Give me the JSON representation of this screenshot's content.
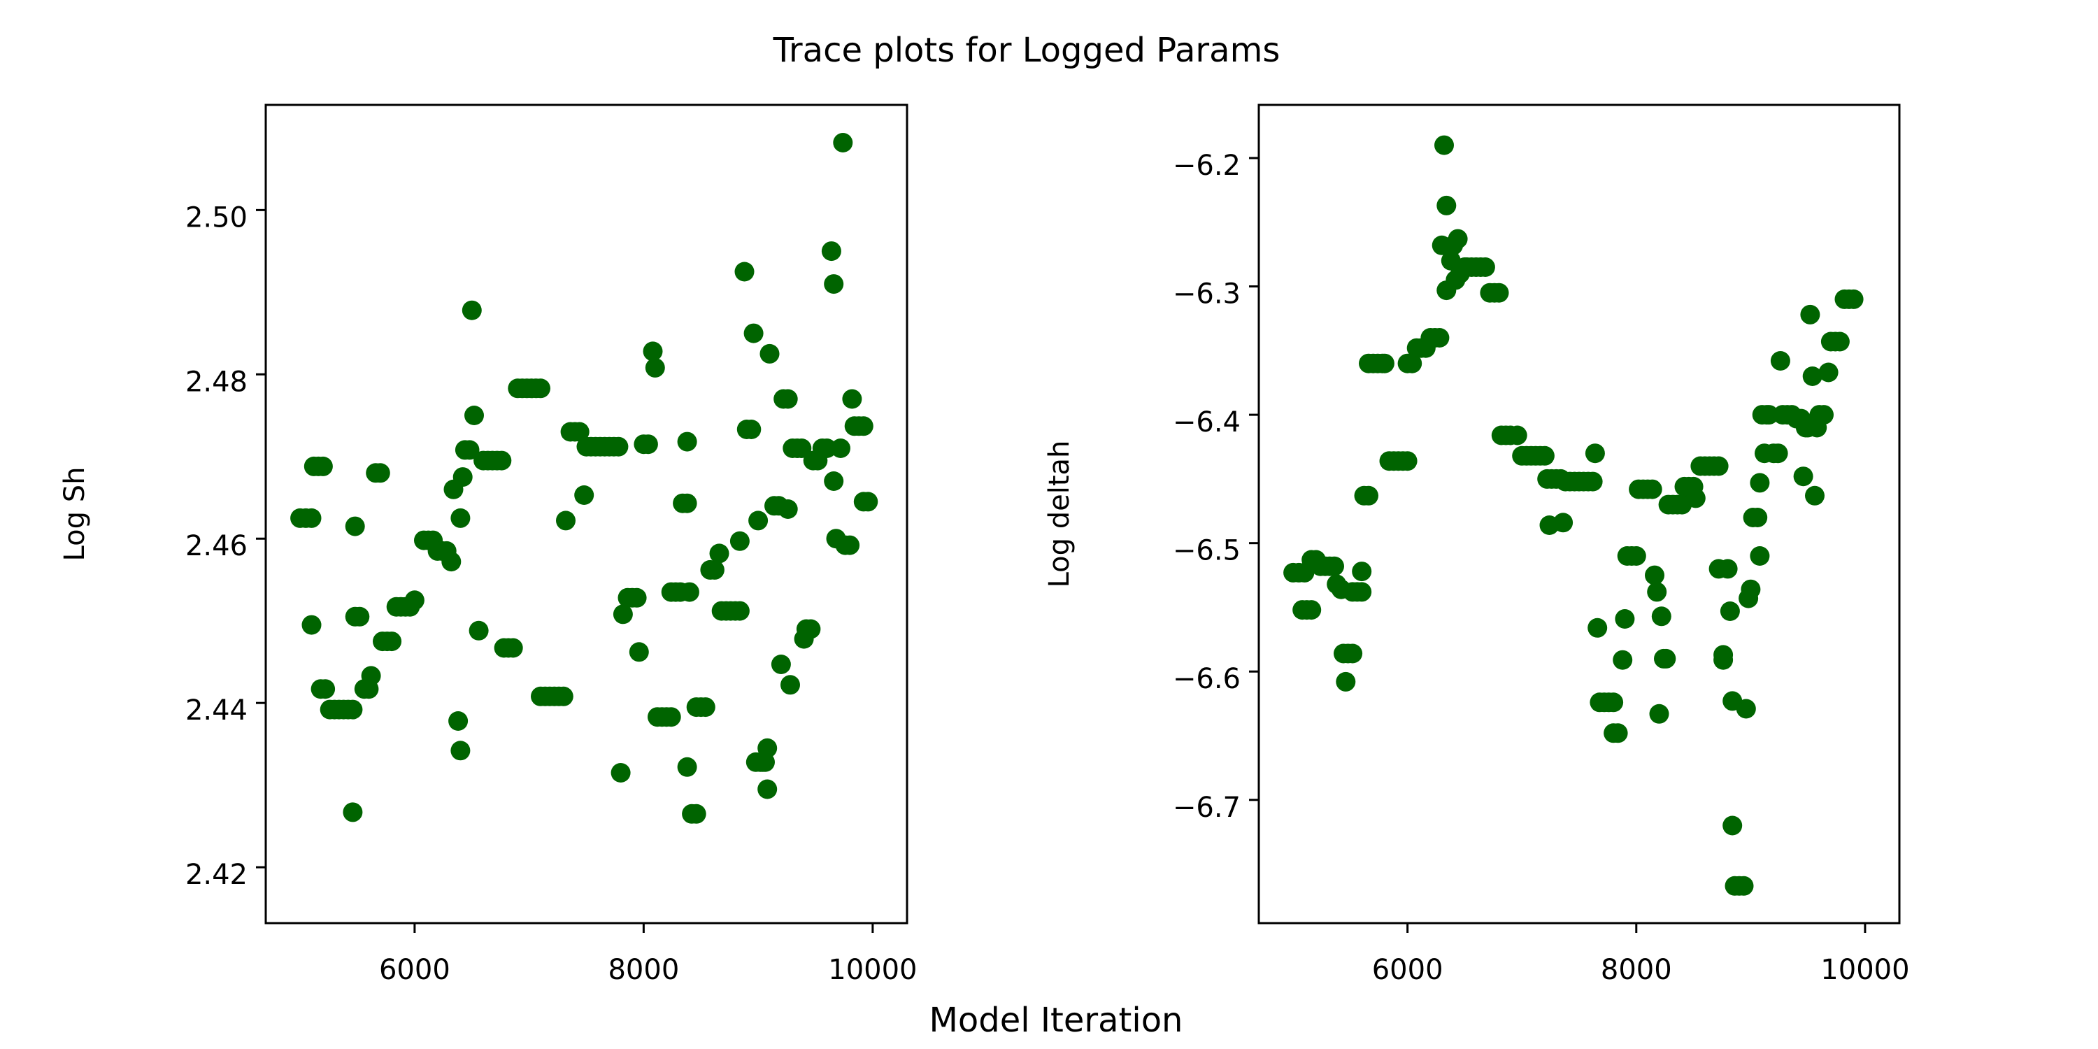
{
  "figure": {
    "title": "Trace plots for Logged Params",
    "xlabel": "Model Iteration"
  },
  "colors": {
    "points": "#006400",
    "axis": "#000000"
  },
  "chart_data": [
    {
      "type": "scatter",
      "ylabel": "Log Sh",
      "xlim": [
        4700,
        10300
      ],
      "ylim": [
        2.4132,
        2.5128
      ],
      "xticks": [
        6000,
        8000,
        10000
      ],
      "xtick_labels": [
        "6000",
        "8000",
        "10000"
      ],
      "yticks": [
        2.42,
        2.44,
        2.46,
        2.48,
        2.5
      ],
      "ytick_labels": [
        "2.42",
        "2.44",
        "2.46",
        "2.48",
        "2.50"
      ],
      "grid": false,
      "points": [
        [
          5000,
          2.4625
        ],
        [
          5050,
          2.4625
        ],
        [
          5100,
          2.4625
        ],
        [
          5100,
          2.4495
        ],
        [
          5120,
          2.4688
        ],
        [
          5160,
          2.4688
        ],
        [
          5200,
          2.4688
        ],
        [
          5180,
          2.4417
        ],
        [
          5220,
          2.4417
        ],
        [
          5260,
          2.4392
        ],
        [
          5300,
          2.4392
        ],
        [
          5340,
          2.4392
        ],
        [
          5380,
          2.4392
        ],
        [
          5420,
          2.4392
        ],
        [
          5460,
          2.4392
        ],
        [
          5460,
          2.4267
        ],
        [
          5480,
          2.4615
        ],
        [
          5480,
          2.4505
        ],
        [
          5520,
          2.4505
        ],
        [
          5560,
          2.4417
        ],
        [
          5600,
          2.4417
        ],
        [
          5620,
          2.4433
        ],
        [
          5660,
          2.468
        ],
        [
          5700,
          2.468
        ],
        [
          5720,
          2.4475
        ],
        [
          5760,
          2.4475
        ],
        [
          5800,
          2.4475
        ],
        [
          5840,
          2.4517
        ],
        [
          5880,
          2.4517
        ],
        [
          5920,
          2.4517
        ],
        [
          5960,
          2.4517
        ],
        [
          6000,
          2.4525
        ],
        [
          6080,
          2.4598
        ],
        [
          6120,
          2.4598
        ],
        [
          6160,
          2.4598
        ],
        [
          6200,
          2.4585
        ],
        [
          6240,
          2.4585
        ],
        [
          6280,
          2.4585
        ],
        [
          6320,
          2.4572
        ],
        [
          6340,
          2.466
        ],
        [
          6380,
          2.4378
        ],
        [
          6400,
          2.4625
        ],
        [
          6400,
          2.4342
        ],
        [
          6420,
          2.4675
        ],
        [
          6440,
          2.4708
        ],
        [
          6480,
          2.4708
        ],
        [
          6500,
          2.4878
        ],
        [
          6520,
          2.475
        ],
        [
          6560,
          2.4488
        ],
        [
          6600,
          2.4695
        ],
        [
          6640,
          2.4695
        ],
        [
          6680,
          2.4695
        ],
        [
          6720,
          2.4695
        ],
        [
          6760,
          2.4695
        ],
        [
          6780,
          2.4467
        ],
        [
          6820,
          2.4467
        ],
        [
          6860,
          2.4467
        ],
        [
          6900,
          2.4783
        ],
        [
          6940,
          2.4783
        ],
        [
          6980,
          2.4783
        ],
        [
          7020,
          2.4783
        ],
        [
          7060,
          2.4783
        ],
        [
          7100,
          2.4783
        ],
        [
          7100,
          2.4408
        ],
        [
          7140,
          2.4408
        ],
        [
          7180,
          2.4408
        ],
        [
          7220,
          2.4408
        ],
        [
          7260,
          2.4408
        ],
        [
          7300,
          2.4408
        ],
        [
          7320,
          2.4622
        ],
        [
          7360,
          2.473
        ],
        [
          7400,
          2.473
        ],
        [
          7440,
          2.473
        ],
        [
          7480,
          2.4653
        ],
        [
          7500,
          2.4712
        ],
        [
          7540,
          2.4712
        ],
        [
          7580,
          2.4712
        ],
        [
          7620,
          2.4712
        ],
        [
          7660,
          2.4712
        ],
        [
          7700,
          2.4712
        ],
        [
          7740,
          2.4712
        ],
        [
          7780,
          2.4712
        ],
        [
          7800,
          2.4315
        ],
        [
          7820,
          2.4508
        ],
        [
          7860,
          2.4528
        ],
        [
          7900,
          2.4528
        ],
        [
          7940,
          2.4528
        ],
        [
          7960,
          2.4462
        ],
        [
          8000,
          2.4715
        ],
        [
          8040,
          2.4715
        ],
        [
          8080,
          2.4828
        ],
        [
          8100,
          2.4808
        ],
        [
          8120,
          2.4383
        ],
        [
          8160,
          2.4383
        ],
        [
          8200,
          2.4383
        ],
        [
          8240,
          2.4383
        ],
        [
          8240,
          2.4535
        ],
        [
          8280,
          2.4535
        ],
        [
          8320,
          2.4535
        ],
        [
          8340,
          2.4643
        ],
        [
          8380,
          2.4643
        ],
        [
          8380,
          2.4718
        ],
        [
          8380,
          2.4322
        ],
        [
          8400,
          2.4535
        ],
        [
          8420,
          2.4265
        ],
        [
          8460,
          2.4265
        ],
        [
          8460,
          2.4395
        ],
        [
          8500,
          2.4395
        ],
        [
          8540,
          2.4395
        ],
        [
          8580,
          2.4562
        ],
        [
          8620,
          2.4562
        ],
        [
          8660,
          2.4582
        ],
        [
          8680,
          2.4512
        ],
        [
          8720,
          2.4512
        ],
        [
          8760,
          2.4512
        ],
        [
          8800,
          2.4512
        ],
        [
          8840,
          2.4512
        ],
        [
          8840,
          2.4597
        ],
        [
          8880,
          2.4925
        ],
        [
          8900,
          2.4733
        ],
        [
          8940,
          2.4733
        ],
        [
          8960,
          2.485
        ],
        [
          8980,
          2.4328
        ],
        [
          9000,
          2.4622
        ],
        [
          9020,
          2.4328
        ],
        [
          9040,
          2.4328
        ],
        [
          9060,
          2.4328
        ],
        [
          9080,
          2.4345
        ],
        [
          9080,
          2.4295
        ],
        [
          9100,
          2.4825
        ],
        [
          9140,
          2.464
        ],
        [
          9180,
          2.464
        ],
        [
          9200,
          2.4447
        ],
        [
          9220,
          2.477
        ],
        [
          9260,
          2.477
        ],
        [
          9260,
          2.4636
        ],
        [
          9280,
          2.4422
        ],
        [
          9300,
          2.471
        ],
        [
          9340,
          2.471
        ],
        [
          9380,
          2.471
        ],
        [
          9400,
          2.4478
        ],
        [
          9420,
          2.449
        ],
        [
          9460,
          2.449
        ],
        [
          9480,
          2.4695
        ],
        [
          9520,
          2.4695
        ],
        [
          9560,
          2.471
        ],
        [
          9600,
          2.471
        ],
        [
          9640,
          2.495
        ],
        [
          9660,
          2.491
        ],
        [
          9660,
          2.467
        ],
        [
          9680,
          2.46
        ],
        [
          9720,
          2.471
        ],
        [
          9740,
          2.5082
        ],
        [
          9760,
          2.4592
        ],
        [
          9800,
          2.4592
        ],
        [
          9820,
          2.477
        ],
        [
          9840,
          2.4737
        ],
        [
          9880,
          2.4737
        ],
        [
          9920,
          2.4737
        ],
        [
          9920,
          2.4645
        ],
        [
          9960,
          2.4645
        ]
      ]
    },
    {
      "type": "scatter",
      "ylabel": "Log deltah",
      "xlim": [
        4700,
        10300
      ],
      "ylim": [
        -6.796,
        -6.1586
      ],
      "xticks": [
        6000,
        8000,
        10000
      ],
      "xtick_labels": [
        "6000",
        "8000",
        "10000"
      ],
      "yticks": [
        -6.7,
        -6.6,
        -6.5,
        -6.4,
        -6.3,
        -6.2
      ],
      "ytick_labels": [
        "−6.7",
        "−6.6",
        "−6.5",
        "−6.4",
        "−6.3",
        "−6.2"
      ],
      "grid": false,
      "points": [
        [
          5000,
          -6.523
        ],
        [
          5050,
          -6.523
        ],
        [
          5100,
          -6.523
        ],
        [
          5080,
          -6.552
        ],
        [
          5120,
          -6.552
        ],
        [
          5160,
          -6.552
        ],
        [
          5160,
          -6.513
        ],
        [
          5200,
          -6.513
        ],
        [
          5240,
          -6.518
        ],
        [
          5280,
          -6.518
        ],
        [
          5320,
          -6.518
        ],
        [
          5360,
          -6.518
        ],
        [
          5380,
          -6.532
        ],
        [
          5420,
          -6.536
        ],
        [
          5440,
          -6.586
        ],
        [
          5460,
          -6.608
        ],
        [
          5480,
          -6.586
        ],
        [
          5520,
          -6.586
        ],
        [
          5520,
          -6.538
        ],
        [
          5560,
          -6.538
        ],
        [
          5600,
          -6.538
        ],
        [
          5600,
          -6.522
        ],
        [
          5620,
          -6.463
        ],
        [
          5660,
          -6.463
        ],
        [
          5660,
          -6.36
        ],
        [
          5700,
          -6.36
        ],
        [
          5740,
          -6.36
        ],
        [
          5780,
          -6.36
        ],
        [
          5800,
          -6.36
        ],
        [
          5840,
          -6.436
        ],
        [
          5880,
          -6.436
        ],
        [
          5920,
          -6.436
        ],
        [
          5960,
          -6.436
        ],
        [
          6000,
          -6.436
        ],
        [
          6000,
          -6.36
        ],
        [
          6040,
          -6.36
        ],
        [
          6080,
          -6.348
        ],
        [
          6120,
          -6.348
        ],
        [
          6160,
          -6.348
        ],
        [
          6200,
          -6.34
        ],
        [
          6240,
          -6.34
        ],
        [
          6280,
          -6.34
        ],
        [
          6300,
          -6.268
        ],
        [
          6320,
          -6.19
        ],
        [
          6340,
          -6.237
        ],
        [
          6340,
          -6.303
        ],
        [
          6380,
          -6.28
        ],
        [
          6400,
          -6.268
        ],
        [
          6420,
          -6.295
        ],
        [
          6440,
          -6.263
        ],
        [
          6460,
          -6.29
        ],
        [
          6500,
          -6.285
        ],
        [
          6520,
          -6.285
        ],
        [
          6560,
          -6.285
        ],
        [
          6600,
          -6.285
        ],
        [
          6640,
          -6.285
        ],
        [
          6680,
          -6.285
        ],
        [
          6720,
          -6.305
        ],
        [
          6760,
          -6.305
        ],
        [
          6800,
          -6.305
        ],
        [
          6820,
          -6.416
        ],
        [
          6860,
          -6.416
        ],
        [
          6900,
          -6.416
        ],
        [
          6960,
          -6.416
        ],
        [
          7000,
          -6.432
        ],
        [
          7040,
          -6.432
        ],
        [
          7080,
          -6.432
        ],
        [
          7120,
          -6.432
        ],
        [
          7160,
          -6.432
        ],
        [
          7200,
          -6.432
        ],
        [
          7220,
          -6.45
        ],
        [
          7240,
          -6.486
        ],
        [
          7260,
          -6.45
        ],
        [
          7300,
          -6.45
        ],
        [
          7340,
          -6.45
        ],
        [
          7360,
          -6.484
        ],
        [
          7380,
          -6.452
        ],
        [
          7420,
          -6.452
        ],
        [
          7460,
          -6.452
        ],
        [
          7500,
          -6.452
        ],
        [
          7540,
          -6.452
        ],
        [
          7580,
          -6.452
        ],
        [
          7620,
          -6.452
        ],
        [
          7640,
          -6.43
        ],
        [
          7660,
          -6.566
        ],
        [
          7680,
          -6.624
        ],
        [
          7720,
          -6.624
        ],
        [
          7760,
          -6.624
        ],
        [
          7800,
          -6.624
        ],
        [
          7800,
          -6.648
        ],
        [
          7840,
          -6.648
        ],
        [
          7880,
          -6.591
        ],
        [
          7900,
          -6.559
        ],
        [
          7920,
          -6.51
        ],
        [
          7960,
          -6.51
        ],
        [
          8000,
          -6.51
        ],
        [
          8020,
          -6.458
        ],
        [
          8060,
          -6.458
        ],
        [
          8100,
          -6.458
        ],
        [
          8140,
          -6.458
        ],
        [
          8160,
          -6.525
        ],
        [
          8180,
          -6.538
        ],
        [
          8200,
          -6.633
        ],
        [
          8220,
          -6.557
        ],
        [
          8240,
          -6.59
        ],
        [
          8260,
          -6.59
        ],
        [
          8280,
          -6.47
        ],
        [
          8320,
          -6.47
        ],
        [
          8360,
          -6.47
        ],
        [
          8400,
          -6.47
        ],
        [
          8420,
          -6.456
        ],
        [
          8460,
          -6.456
        ],
        [
          8500,
          -6.456
        ],
        [
          8520,
          -6.465
        ],
        [
          8560,
          -6.44
        ],
        [
          8600,
          -6.44
        ],
        [
          8640,
          -6.44
        ],
        [
          8680,
          -6.44
        ],
        [
          8720,
          -6.44
        ],
        [
          8720,
          -6.52
        ],
        [
          8760,
          -6.591
        ],
        [
          8760,
          -6.587
        ],
        [
          8800,
          -6.52
        ],
        [
          8820,
          -6.553
        ],
        [
          8840,
          -6.72
        ],
        [
          8840,
          -6.623
        ],
        [
          8860,
          -6.767
        ],
        [
          8900,
          -6.767
        ],
        [
          8940,
          -6.767
        ],
        [
          8960,
          -6.629
        ],
        [
          8980,
          -6.543
        ],
        [
          9000,
          -6.536
        ],
        [
          9020,
          -6.48
        ],
        [
          9060,
          -6.48
        ],
        [
          9080,
          -6.51
        ],
        [
          9080,
          -6.453
        ],
        [
          9100,
          -6.4
        ],
        [
          9120,
          -6.43
        ],
        [
          9140,
          -6.4
        ],
        [
          9160,
          -6.4
        ],
        [
          9200,
          -6.43
        ],
        [
          9240,
          -6.43
        ],
        [
          9260,
          -6.358
        ],
        [
          9280,
          -6.4
        ],
        [
          9320,
          -6.4
        ],
        [
          9360,
          -6.4
        ],
        [
          9400,
          -6.403
        ],
        [
          9440,
          -6.403
        ],
        [
          9460,
          -6.448
        ],
        [
          9480,
          -6.41
        ],
        [
          9500,
          -6.41
        ],
        [
          9520,
          -6.322
        ],
        [
          9540,
          -6.37
        ],
        [
          9560,
          -6.463
        ],
        [
          9580,
          -6.41
        ],
        [
          9600,
          -6.4
        ],
        [
          9640,
          -6.4
        ],
        [
          9680,
          -6.367
        ],
        [
          9700,
          -6.343
        ],
        [
          9740,
          -6.343
        ],
        [
          9780,
          -6.343
        ],
        [
          9820,
          -6.31
        ],
        [
          9860,
          -6.31
        ],
        [
          9900,
          -6.31
        ]
      ]
    }
  ]
}
